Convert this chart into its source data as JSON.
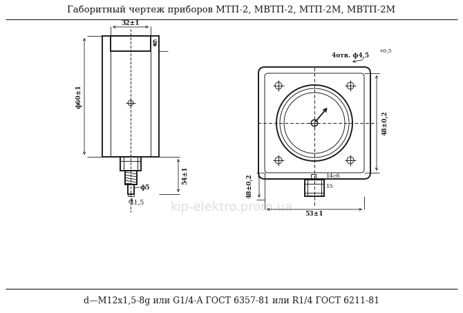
{
  "title": "Габоритный чертеж приборов МТП-2, МВТП-2, МТП-2М, МВТП-2М",
  "footer": "d—M12x1,5-8g или G1/4-A ГОСТ 6357-81 или R1/4 ГОСТ 6211-81",
  "bg_color": "#ffffff",
  "line_color": "#1a1a1a",
  "watermark": "kip-elektro.prom.ua",
  "lw_main": 1.4,
  "lw_thin": 0.7,
  "lw_dim": 0.6,
  "fs_label": 6.5,
  "fs_title": 9.5,
  "fs_footer": 9.0,
  "fs_watermark": 13
}
